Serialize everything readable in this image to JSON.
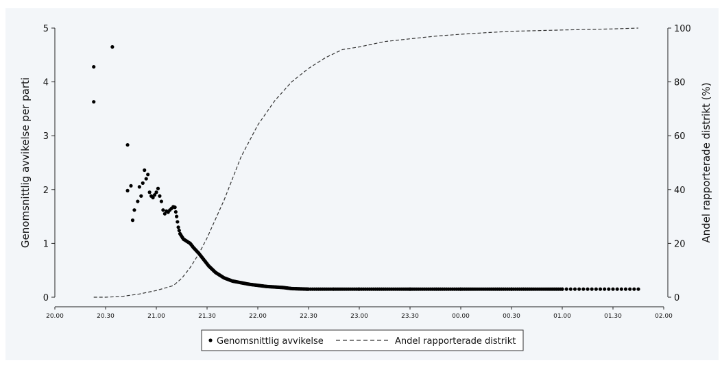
{
  "chart_data": {
    "type": "scatter",
    "y_left_label": "Genomsnittlig avvikelse per parti",
    "y_right_label": "Andel rapporterade distrikt (%)",
    "x_ticks": [
      "20.00",
      "20.30",
      "21.00",
      "21.30",
      "22.00",
      "22.30",
      "23.00",
      "23.30",
      "00.00",
      "00.30",
      "01.00",
      "01.30",
      "02.00"
    ],
    "x_range_minutes": [
      0,
      360
    ],
    "y_left_ticks": [
      "0",
      "1",
      "2",
      "3",
      "4",
      "5"
    ],
    "y_left_range": [
      0,
      5
    ],
    "y_right_ticks": [
      "0",
      "20",
      "40",
      "60",
      "80",
      "100"
    ],
    "y_right_range": [
      0,
      100
    ],
    "grid": false,
    "legend_position": "bottom",
    "legend": [
      "Genomsnittlig avvikelse",
      "Andel rapporterade distrikt"
    ],
    "series": [
      {
        "name": "Genomsnittlig avvikelse",
        "style": "dots",
        "color": "#000000",
        "axis": "left",
        "x": [
          "20.23",
          "20.23",
          "20.34",
          "20.43",
          "20.43",
          "20.45",
          "20.46",
          "20.47",
          "20.49",
          "20.50",
          "20.51",
          "20.52",
          "20.53",
          "20.54",
          "20.55",
          "20.56",
          "20.57",
          "20.58",
          "20.59",
          "21.00",
          "21.01",
          "21.02",
          "21.03",
          "21.04",
          "21.05",
          "21.06",
          "21.07",
          "21.08",
          "21.09",
          "21.10",
          "21.11",
          "21.12",
          "21.13",
          "21.14",
          "21.16",
          "21.18",
          "21.20",
          "21.22",
          "21.25",
          "21.28",
          "21.31",
          "21.35",
          "21.40",
          "21.45",
          "21.50",
          "21.55",
          "22.00",
          "22.05",
          "22.10",
          "22.15",
          "22.20",
          "22.30",
          "22.45",
          "23.00",
          "23.30",
          "00.00",
          "00.30",
          "01.00",
          "01.30",
          "01.45"
        ],
        "y": [
          4.28,
          3.63,
          4.65,
          2.83,
          1.98,
          2.07,
          1.43,
          1.62,
          1.78,
          2.05,
          1.88,
          2.12,
          2.36,
          2.2,
          2.28,
          1.95,
          1.88,
          1.85,
          1.9,
          1.95,
          2.02,
          1.88,
          1.78,
          1.62,
          1.55,
          1.6,
          1.58,
          1.62,
          1.65,
          1.68,
          1.67,
          1.5,
          1.3,
          1.18,
          1.08,
          1.04,
          1.0,
          0.92,
          0.82,
          0.7,
          0.58,
          0.46,
          0.36,
          0.3,
          0.27,
          0.24,
          0.22,
          0.2,
          0.19,
          0.18,
          0.16,
          0.15,
          0.15,
          0.15,
          0.15,
          0.15,
          0.15,
          0.15,
          0.15,
          0.15
        ]
      },
      {
        "name": "Andel rapporterade distrikt",
        "style": "dashed",
        "color": "#333333",
        "axis": "right",
        "x": [
          "20.23",
          "20.30",
          "20.40",
          "20.50",
          "21.00",
          "21.10",
          "21.15",
          "21.20",
          "21.25",
          "21.30",
          "21.35",
          "21.40",
          "21.45",
          "21.50",
          "22.00",
          "22.10",
          "22.20",
          "22.30",
          "22.40",
          "22.50",
          "23.00",
          "23.15",
          "23.30",
          "23.45",
          "00.00",
          "00.15",
          "00.30",
          "01.00",
          "01.30",
          "01.45"
        ],
        "y": [
          0,
          0,
          0.3,
          1.2,
          2.5,
          4.3,
          7,
          11,
          16,
          22,
          29,
          36,
          44,
          52,
          64,
          73,
          80,
          85,
          89,
          92,
          93,
          95,
          96,
          97,
          97.7,
          98.3,
          98.8,
          99.3,
          99.7,
          100
        ]
      }
    ]
  }
}
